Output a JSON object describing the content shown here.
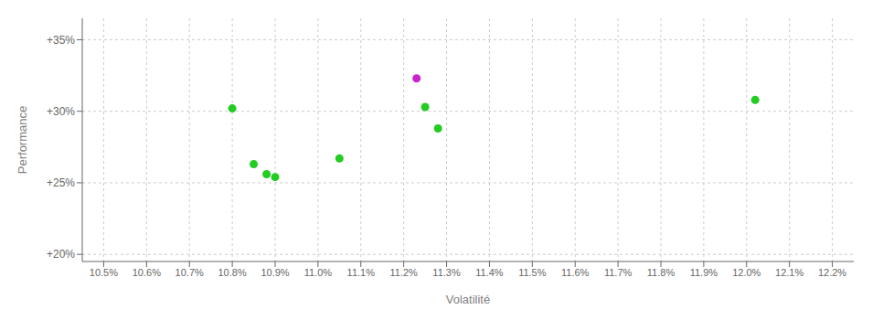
{
  "chart_data": {
    "type": "scatter",
    "xlabel": "Volatilité",
    "ylabel": "Performance",
    "xlim": [
      10.45,
      12.25
    ],
    "ylim": [
      19.5,
      36.5
    ],
    "xticks": [
      {
        "value": 10.5,
        "label": "10.5%"
      },
      {
        "value": 10.6,
        "label": "10.6%"
      },
      {
        "value": 10.7,
        "label": "10.7%"
      },
      {
        "value": 10.8,
        "label": "10.8%"
      },
      {
        "value": 10.9,
        "label": "10.9%"
      },
      {
        "value": 11.0,
        "label": "11.0%"
      },
      {
        "value": 11.1,
        "label": "11.1%"
      },
      {
        "value": 11.2,
        "label": "11.2%"
      },
      {
        "value": 11.3,
        "label": "11.3%"
      },
      {
        "value": 11.4,
        "label": "11.4%"
      },
      {
        "value": 11.5,
        "label": "11.5%"
      },
      {
        "value": 11.6,
        "label": "11.6%"
      },
      {
        "value": 11.7,
        "label": "11.7%"
      },
      {
        "value": 11.8,
        "label": "11.8%"
      },
      {
        "value": 11.9,
        "label": "11.9%"
      },
      {
        "value": 12.0,
        "label": "12.0%"
      },
      {
        "value": 12.1,
        "label": "12.1%"
      },
      {
        "value": 12.2,
        "label": "12.2%"
      }
    ],
    "yticks": [
      {
        "value": 20,
        "label": "+20%"
      },
      {
        "value": 25,
        "label": "+25%"
      },
      {
        "value": 30,
        "label": "+30%"
      },
      {
        "value": 35,
        "label": "+35%"
      }
    ],
    "grid": true,
    "series": [
      {
        "color": "#22cc22",
        "x": [
          10.8,
          10.85,
          10.88,
          10.9,
          11.05,
          11.25,
          11.28,
          12.02
        ],
        "values": [
          30.2,
          26.3,
          25.6,
          25.4,
          26.7,
          30.3,
          28.8,
          30.8
        ]
      },
      {
        "color": "#cc22cc",
        "x": [
          11.23
        ],
        "values": [
          32.3
        ]
      }
    ]
  }
}
